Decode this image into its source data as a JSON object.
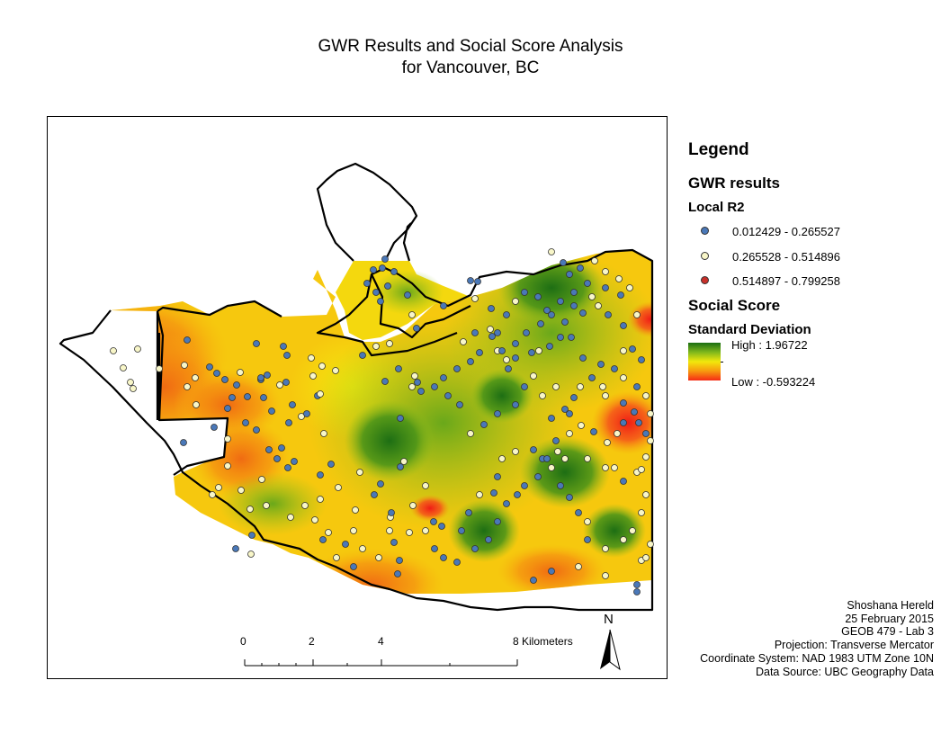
{
  "title": {
    "line1": "GWR Results and Social Score Analysis",
    "line2": "for Vancouver, BC"
  },
  "legend": {
    "heading": "Legend",
    "gwr_heading": "GWR results",
    "local_r2_heading": "Local R2",
    "r2_classes": [
      {
        "label": "0.012429 - 0.265527",
        "color": "#4a78b8"
      },
      {
        "label": "0.265528 - 0.514896",
        "color": "#f8f6c8"
      },
      {
        "label": "0.514897 - 0.799258",
        "color": "#c8302a"
      }
    ],
    "social_heading": "Social Score",
    "std_heading": "Standard Deviation",
    "high_label": "High : 1.96722",
    "low_label": "Low : -0.593224",
    "ramp_colors": [
      "#1a6e12",
      "#7fb71c",
      "#f2e80c",
      "#f79a0e",
      "#f52a16"
    ]
  },
  "scale": {
    "ticks": [
      "0",
      "2",
      "4",
      "8 Kilometers"
    ]
  },
  "north": {
    "label": "N"
  },
  "credits": [
    "Shoshana Hereld",
    "25 February 2015",
    "GEOB 479 - Lab 3",
    "Projection: Transverse Mercator",
    "Coordinate System: NAD 1983 UTM Zone 10N",
    "Data Source: UBC Geography Data"
  ]
}
